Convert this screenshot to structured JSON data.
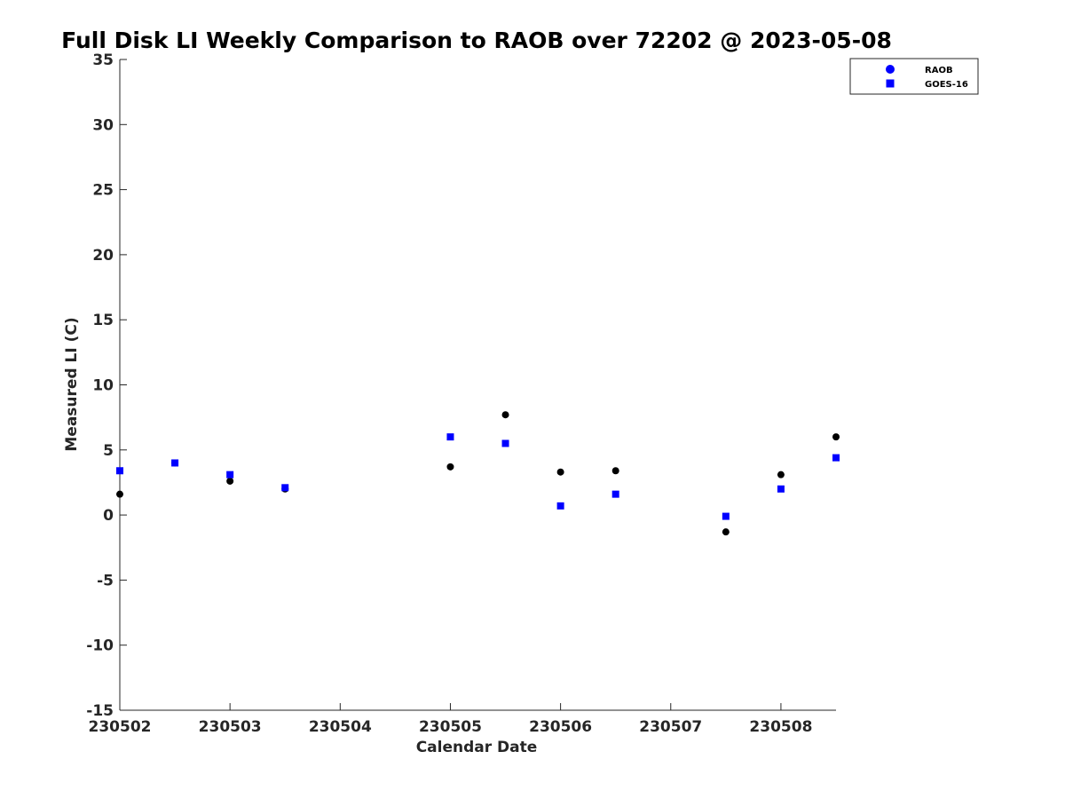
{
  "chart_data": {
    "type": "scatter",
    "title": "Full Disk LI Weekly Comparison to RAOB over 72202 @ 2023-05-08",
    "xlabel": "Calendar Date",
    "ylabel": "Measured LI (C)",
    "x_ticks": [
      "230502",
      "230503",
      "230504",
      "230505",
      "230506",
      "230507",
      "230508"
    ],
    "x_range": [
      230502,
      230508.5
    ],
    "ylim": [
      -15,
      35
    ],
    "y_ticks": [
      "-15",
      "-10",
      "-5",
      "0",
      "5",
      "10",
      "15",
      "20",
      "25",
      "30",
      "35"
    ],
    "grid": false,
    "legend_position": "top-right",
    "series": [
      {
        "name": "RAOB",
        "marker": "circle",
        "color": "#000000",
        "legend_color": "#0000ff",
        "points": [
          {
            "x": 230502.0,
            "y": 1.6
          },
          {
            "x": 230502.5,
            "y": 4.0
          },
          {
            "x": 230503.0,
            "y": 2.6
          },
          {
            "x": 230503.5,
            "y": 2.0
          },
          {
            "x": 230505.0,
            "y": 3.7
          },
          {
            "x": 230505.5,
            "y": 7.7
          },
          {
            "x": 230506.0,
            "y": 3.3
          },
          {
            "x": 230506.5,
            "y": 3.4
          },
          {
            "x": 230507.5,
            "y": -1.3
          },
          {
            "x": 230508.0,
            "y": 3.1
          },
          {
            "x": 230508.5,
            "y": 6.0
          }
        ]
      },
      {
        "name": "GOES-16",
        "marker": "square",
        "color": "#0000ff",
        "legend_color": "#0000ff",
        "points": [
          {
            "x": 230502.0,
            "y": 3.4
          },
          {
            "x": 230502.5,
            "y": 4.0
          },
          {
            "x": 230503.0,
            "y": 3.1
          },
          {
            "x": 230503.5,
            "y": 2.1
          },
          {
            "x": 230505.0,
            "y": 6.0
          },
          {
            "x": 230505.5,
            "y": 5.5
          },
          {
            "x": 230506.0,
            "y": 0.7
          },
          {
            "x": 230506.5,
            "y": 1.6
          },
          {
            "x": 230507.5,
            "y": -0.1
          },
          {
            "x": 230508.0,
            "y": 2.0
          },
          {
            "x": 230508.5,
            "y": 4.4
          }
        ]
      }
    ]
  }
}
